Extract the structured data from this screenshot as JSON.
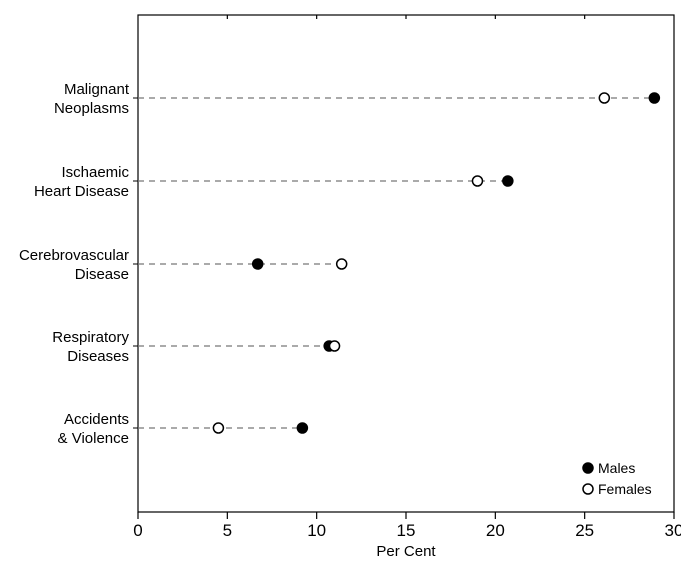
{
  "chart_data": {
    "type": "scatter",
    "xlabel": "Per Cent",
    "xlim": [
      0,
      30
    ],
    "xticks": [
      0,
      5,
      10,
      15,
      20,
      25,
      30
    ],
    "grid": false,
    "categories": [
      [
        "Malignant",
        "Neoplasms"
      ],
      [
        "Ischaemic",
        "Heart Disease"
      ],
      [
        "Cerebrovascular",
        "Disease"
      ],
      [
        "Respiratory",
        "Diseases"
      ],
      [
        "Accidents",
        "& Violence"
      ]
    ],
    "series": [
      {
        "name": "Males",
        "marker": "filled-circle",
        "values": [
          28.9,
          20.7,
          6.7,
          10.7,
          9.2
        ]
      },
      {
        "name": "Females",
        "marker": "open-circle",
        "values": [
          26.1,
          19.0,
          11.4,
          11.0,
          4.5
        ]
      }
    ],
    "legend_position": "bottom-right"
  }
}
